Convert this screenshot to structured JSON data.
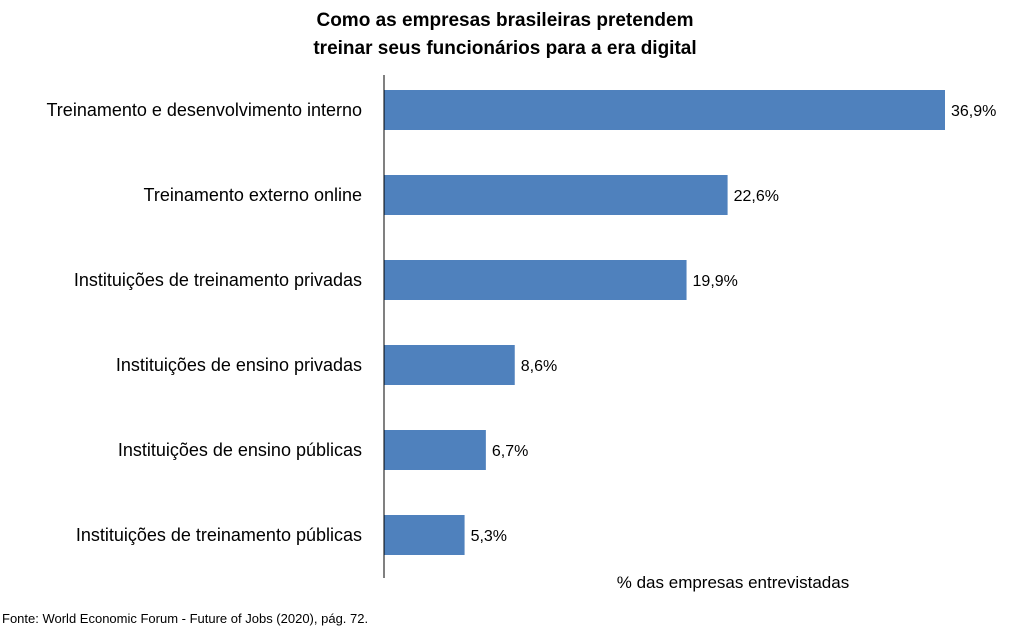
{
  "chart_data": {
    "type": "bar",
    "orientation": "horizontal",
    "title_lines": [
      "Como as empresas brasileiras pretendem",
      "treinar seus funcionários para a era digital"
    ],
    "categories": [
      "Treinamento e desenvolvimento interno",
      "Treinamento externo online",
      "Instituições de treinamento privadas",
      "Instituições de ensino privadas",
      "Instituições de ensino públicas",
      "Instituições de treinamento públicas"
    ],
    "values": [
      36.9,
      22.6,
      19.9,
      8.6,
      6.7,
      5.3
    ],
    "value_labels": [
      "36,9%",
      "22,6%",
      "19,9%",
      "8,6%",
      "6,7%",
      "5,3%"
    ],
    "xlabel": "% das empresas entrevistadas",
    "xlim": [
      0,
      40
    ],
    "grid": false,
    "legend": "none",
    "bar_color": "#4F81BD",
    "axis_color": "#000000"
  },
  "source": "Fonte: World Economic Forum - Future of Jobs (2020), pág. 72."
}
